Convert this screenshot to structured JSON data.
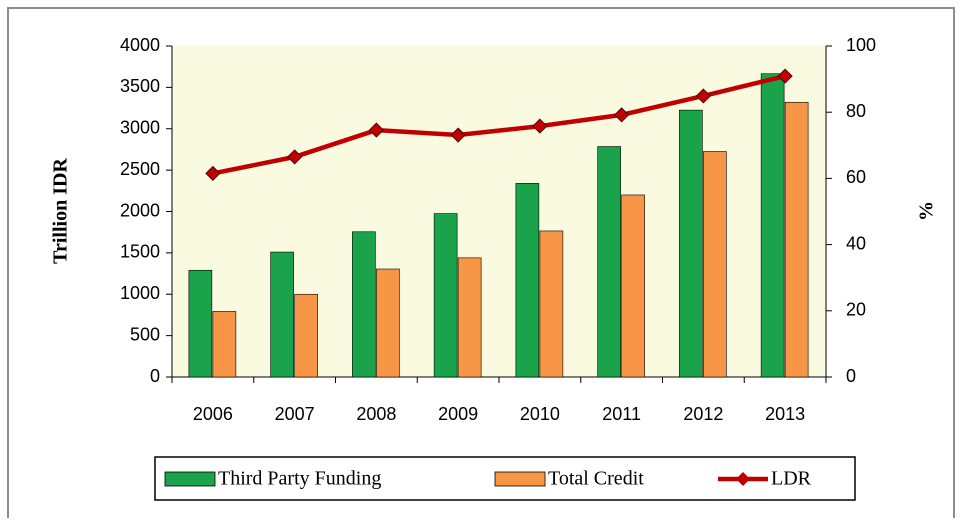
{
  "chart_data": {
    "type": "bar",
    "categories": [
      "2006",
      "2007",
      "2008",
      "2009",
      "2010",
      "2011",
      "2012",
      "2013"
    ],
    "series": [
      {
        "name": "Third Party Funding",
        "type": "bar",
        "color": "#1aa34a",
        "values": [
          1290,
          1510,
          1755,
          1975,
          2340,
          2785,
          3225,
          3665
        ]
      },
      {
        "name": "Total Credit",
        "type": "bar",
        "color": "#f79646",
        "values": [
          792,
          1000,
          1305,
          1440,
          1765,
          2200,
          2725,
          3320
        ]
      },
      {
        "name": "LDR",
        "type": "line",
        "axis": "y2",
        "color": "#c00000",
        "values": [
          61.5,
          66.5,
          74.6,
          73.1,
          75.8,
          79.2,
          84.9,
          90.9
        ]
      }
    ],
    "ylabel": "Trillion IDR",
    "y2label": "%",
    "ylim": [
      0,
      4000
    ],
    "yticks": [
      0,
      500,
      1000,
      1500,
      2000,
      2500,
      3000,
      3500,
      4000
    ],
    "y2lim": [
      0,
      100
    ],
    "y2ticks": [
      0,
      20,
      40,
      60,
      80,
      100
    ],
    "grid": false,
    "legend": "bottom"
  }
}
